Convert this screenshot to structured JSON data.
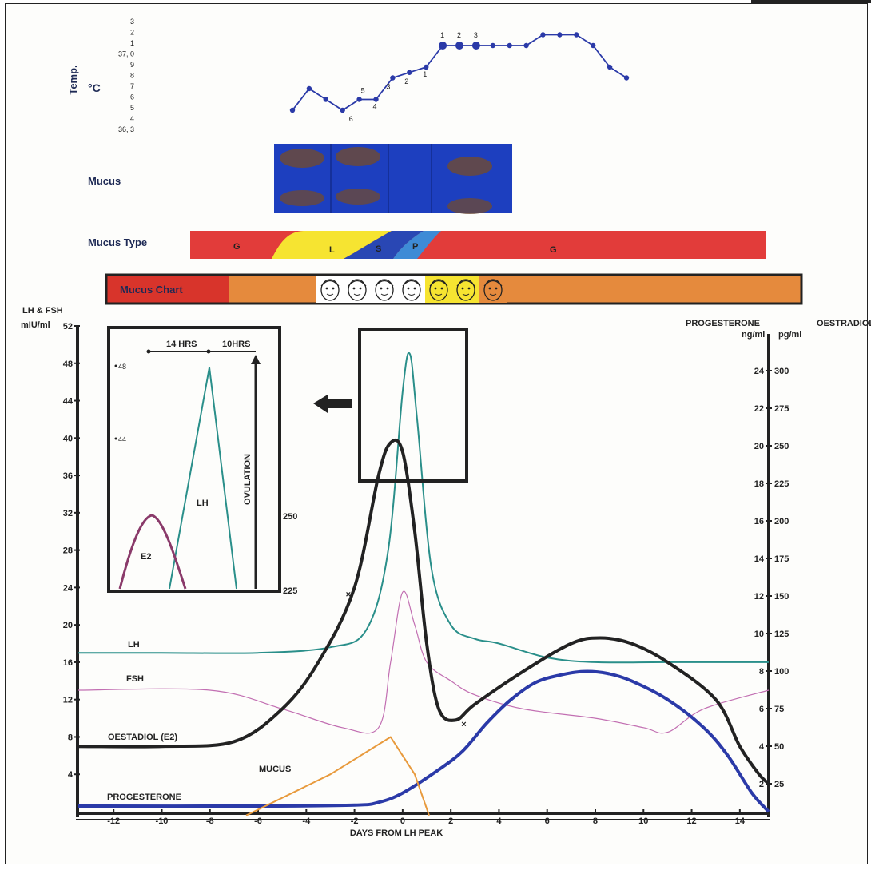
{
  "chart_data": {
    "type": "line",
    "xlabel": "DAYS FROM LH PEAK",
    "x_ticks": [
      -12,
      -10,
      -8,
      -6,
      -4,
      -2,
      0,
      2,
      4,
      6,
      8,
      10,
      12,
      14
    ],
    "xlim": [
      -13.5,
      15.2
    ],
    "left_axis": {
      "label_line1": "LH & FSH",
      "label_line2": "mIU/ml",
      "ylim": [
        0,
        52
      ],
      "ticks": [
        4,
        8,
        12,
        16,
        20,
        24,
        28,
        32,
        36,
        40,
        44,
        48,
        52
      ]
    },
    "right_axis_progesterone": {
      "label_line1": "PROGESTERONE",
      "label_line2": "ng/ml",
      "ticks": [
        2,
        4,
        6,
        8,
        10,
        12,
        14,
        16,
        18,
        20,
        22,
        24
      ]
    },
    "right_axis_oestradiol": {
      "label_line1": "OESTRADIOL",
      "label_line2": "pg/ml",
      "ticks": [
        25,
        50,
        75,
        100,
        125,
        150,
        175,
        200,
        225,
        250,
        275,
        300
      ]
    },
    "series": [
      {
        "name": "LH",
        "color": "#2a8f8a",
        "points": [
          [
            -13.5,
            17
          ],
          [
            -10,
            17
          ],
          [
            -6,
            17
          ],
          [
            -3,
            17.6
          ],
          [
            -1.5,
            19.5
          ],
          [
            -0.6,
            28
          ],
          [
            0,
            45
          ],
          [
            0.3,
            49
          ],
          [
            0.6,
            42
          ],
          [
            1.2,
            26
          ],
          [
            2,
            20
          ],
          [
            3,
            18.5
          ],
          [
            4,
            18
          ],
          [
            6,
            16.5
          ],
          [
            8,
            16
          ],
          [
            11,
            16
          ],
          [
            15.2,
            16
          ]
        ]
      },
      {
        "name": "FSH",
        "color": "#c26fb2",
        "points": [
          [
            -13.5,
            13
          ],
          [
            -8,
            13
          ],
          [
            -5,
            11
          ],
          [
            -2.5,
            9
          ],
          [
            -1,
            9
          ],
          [
            -0.5,
            16
          ],
          [
            0,
            23.5
          ],
          [
            0.5,
            20
          ],
          [
            1,
            16
          ],
          [
            2,
            14
          ],
          [
            3,
            12.5
          ],
          [
            5,
            11
          ],
          [
            8,
            10
          ],
          [
            10,
            9
          ],
          [
            11,
            8.5
          ],
          [
            12.5,
            11
          ],
          [
            15.2,
            13
          ]
        ]
      },
      {
        "name": "OESTADIOL (E2)",
        "color": "#222222",
        "points": [
          [
            -13.5,
            7
          ],
          [
            -10,
            7
          ],
          [
            -7,
            7.5
          ],
          [
            -5,
            11
          ],
          [
            -3.5,
            16
          ],
          [
            -2,
            24
          ],
          [
            -1,
            36
          ],
          [
            -0.5,
            39.5
          ],
          [
            0,
            38.5
          ],
          [
            0.5,
            30
          ],
          [
            1,
            18
          ],
          [
            1.5,
            11
          ],
          [
            2.2,
            9.8
          ],
          [
            3,
            11.5
          ],
          [
            5,
            15
          ],
          [
            7,
            18
          ],
          [
            8.2,
            18.6
          ],
          [
            9.5,
            18
          ],
          [
            11,
            16
          ],
          [
            13,
            12
          ],
          [
            14,
            7
          ],
          [
            14.8,
            4
          ],
          [
            15.2,
            3
          ]
        ]
      },
      {
        "name": "PROGESTERONE",
        "color": "#2b3aa8",
        "points": [
          [
            -13.5,
            0.6
          ],
          [
            -6,
            0.6
          ],
          [
            -2,
            0.7
          ],
          [
            -1,
            1
          ],
          [
            0,
            2
          ],
          [
            1.5,
            4.5
          ],
          [
            2.5,
            6.5
          ],
          [
            3.5,
            9.5
          ],
          [
            4.5,
            12
          ],
          [
            5.5,
            13.8
          ],
          [
            6.5,
            14.6
          ],
          [
            7.5,
            15
          ],
          [
            8.5,
            14.8
          ],
          [
            9.5,
            14
          ],
          [
            11,
            12
          ],
          [
            12.5,
            9
          ],
          [
            13.5,
            6
          ],
          [
            14.5,
            2
          ],
          [
            15.2,
            0
          ]
        ]
      },
      {
        "name": "MUCUS",
        "color": "#e89a3c",
        "points": [
          [
            -6.5,
            -1
          ],
          [
            -3,
            4
          ],
          [
            -0.5,
            8
          ],
          [
            0.5,
            4
          ],
          [
            1.1,
            -1
          ]
        ]
      }
    ],
    "temperature": {
      "label": "Temp.",
      "unit": "°C",
      "tick_labels": [
        "3",
        "2",
        "1",
        "37, 0",
        "9",
        "8",
        "7",
        "6",
        "5",
        "4",
        "36, 3"
      ],
      "values": [
        36.5,
        36.7,
        36.6,
        36.5,
        36.6,
        36.6,
        36.8,
        36.85,
        36.9,
        37.1,
        37.1,
        37.1,
        37.1,
        37.1,
        37.1,
        37.2,
        37.2,
        37.2,
        37.1,
        36.9,
        36.8
      ],
      "point_labels": [
        [
          "5",
          "6"
        ],
        [
          "4",
          "5"
        ],
        [
          "3",
          "6"
        ],
        [
          "2",
          "7"
        ],
        [
          "1",
          "8"
        ],
        [
          "1",
          "9"
        ],
        [
          "2",
          "10"
        ],
        [
          "3",
          "11"
        ]
      ]
    },
    "mucus_strip": {
      "label": "Mucus",
      "color": "#1d3fbf"
    },
    "mucus_type": {
      "label": "Mucus  Type",
      "segments": [
        {
          "letter": "G",
          "color": "#e23c3a"
        },
        {
          "letter": "L",
          "color": "#f6e431"
        },
        {
          "letter": "S",
          "color": "#2947b4"
        },
        {
          "letter": "P",
          "color": "#3e8bd6"
        },
        {
          "letter": "G",
          "color": "#e23c3a"
        }
      ]
    },
    "mucus_chart": {
      "label": "Mucus Chart",
      "left_color": "#d8342b",
      "body_color": "#e58a3d",
      "faces": [
        "white",
        "white",
        "white",
        "white",
        "yellow",
        "yellow",
        "orange"
      ]
    },
    "inset": {
      "top_labels": [
        "14 HRS",
        "10HRS"
      ],
      "left_ticks": [
        "48",
        "44"
      ],
      "right_ticks": [
        "250",
        "225"
      ],
      "lh_label": "LH",
      "e2_label": "E2",
      "ovulation_label": "OVULATION"
    }
  }
}
